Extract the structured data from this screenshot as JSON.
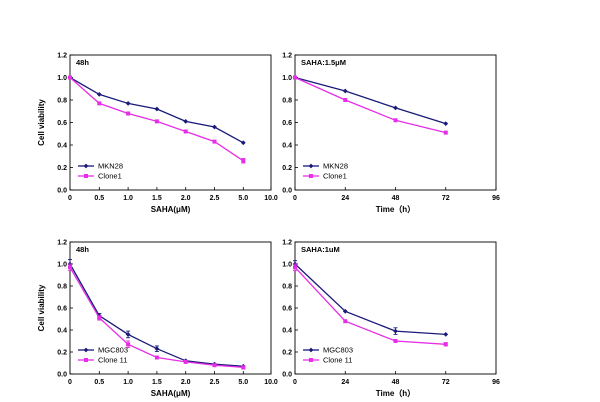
{
  "colors": {
    "series_a": "#1a1a7a",
    "series_b": "#e62ee6"
  },
  "chart_data": [
    {
      "type": "line",
      "title": "48h",
      "xlabel": "SAHA(μM)",
      "ylabel": "Cell viability",
      "categories": [
        "0",
        "0.5",
        "1.0",
        "1.5",
        "2.0",
        "2.5",
        "5.0"
      ],
      "x_tick_labels": [
        "0",
        "0.5",
        "1.0",
        "1.5",
        "2.0",
        "2.5",
        "5.0",
        "10.0"
      ],
      "ylim": [
        0,
        1.2
      ],
      "y_tick_labels": [
        "0.0",
        "0.2",
        "0.4",
        "0.6",
        "0.8",
        "1.0",
        "1.2"
      ],
      "legend_position": "bottom-left",
      "series": [
        {
          "name": "MKN28",
          "color": "#1a1a7a",
          "marker": "diamond",
          "values": [
            1.0,
            0.85,
            0.77,
            0.72,
            0.61,
            0.56,
            0.42
          ],
          "errors": [
            0,
            0,
            0,
            0,
            0,
            0,
            0
          ]
        },
        {
          "name": "Clone1",
          "color": "#e62ee6",
          "marker": "square",
          "values": [
            1.0,
            0.77,
            0.68,
            0.61,
            0.52,
            0.43,
            0.26
          ],
          "errors": [
            0,
            0,
            0,
            0,
            0,
            0,
            0.02
          ]
        }
      ]
    },
    {
      "type": "line",
      "title": "SAHA:1.5μM",
      "xlabel": "Time（h）",
      "ylabel": "",
      "x_ticks": [
        0,
        24,
        48,
        72,
        96
      ],
      "x_tick_labels": [
        "0",
        "24",
        "48",
        "72",
        "96"
      ],
      "xlim": [
        0,
        96
      ],
      "ylim": [
        0,
        1.2
      ],
      "y_tick_labels": [
        "0.0",
        "0.2",
        "0.4",
        "0.6",
        "0.8",
        "1.0",
        "1.2"
      ],
      "legend_position": "bottom-left",
      "series": [
        {
          "name": "MKN28",
          "color": "#1a1a7a",
          "marker": "diamond",
          "x": [
            0,
            24,
            48,
            72
          ],
          "values": [
            1.0,
            0.88,
            0.73,
            0.59
          ],
          "errors": [
            0,
            0,
            0,
            0
          ]
        },
        {
          "name": "Clone1",
          "color": "#e62ee6",
          "marker": "square",
          "x": [
            0,
            24,
            48,
            72
          ],
          "values": [
            1.0,
            0.8,
            0.62,
            0.51
          ],
          "errors": [
            0,
            0,
            0,
            0
          ]
        }
      ]
    },
    {
      "type": "line",
      "title": "48h",
      "xlabel": "SAHA(μM)",
      "ylabel": "Cell viability",
      "categories": [
        "0",
        "0.5",
        "1.0",
        "1.5",
        "2.0",
        "2.5",
        "5.0"
      ],
      "x_tick_labels": [
        "0",
        "0.5",
        "1.0",
        "1.5",
        "2.0",
        "2.5",
        "5.0",
        "10.0"
      ],
      "ylim": [
        0,
        1.2
      ],
      "y_tick_labels": [
        "0.0",
        "0.2",
        "0.4",
        "0.6",
        "0.8",
        "1.0",
        "1.2"
      ],
      "legend_position": "bottom-left",
      "series": [
        {
          "name": "MGC803",
          "color": "#1a1a7a",
          "marker": "diamond",
          "values": [
            1.0,
            0.53,
            0.36,
            0.23,
            0.12,
            0.09,
            0.07
          ],
          "errors": [
            0.04,
            0.02,
            0.03,
            0.025,
            0,
            0,
            0
          ]
        },
        {
          "name": "Clone 11",
          "color": "#e62ee6",
          "marker": "square",
          "values": [
            0.97,
            0.51,
            0.27,
            0.15,
            0.11,
            0.08,
            0.06
          ],
          "errors": [
            0.03,
            0.02,
            0.03,
            0,
            0,
            0,
            0.015
          ]
        }
      ]
    },
    {
      "type": "line",
      "title": "SAHA:1uM",
      "xlabel": "Time（h）",
      "ylabel": "",
      "x_ticks": [
        0,
        24,
        48,
        72,
        96
      ],
      "x_tick_labels": [
        "0",
        "24",
        "48",
        "72",
        "96"
      ],
      "xlim": [
        0,
        96
      ],
      "ylim": [
        0,
        1.2
      ],
      "y_tick_labels": [
        "0.0",
        "0.2",
        "0.4",
        "0.6",
        "0.8",
        "1.0",
        "1.2"
      ],
      "legend_position": "bottom-left",
      "series": [
        {
          "name": "MGC803",
          "color": "#1a1a7a",
          "marker": "diamond",
          "x": [
            0,
            24,
            48,
            72
          ],
          "values": [
            1.0,
            0.57,
            0.39,
            0.36
          ],
          "errors": [
            0.03,
            0,
            0.03,
            0
          ]
        },
        {
          "name": "Clone 11",
          "color": "#e62ee6",
          "marker": "square",
          "x": [
            0,
            24,
            48,
            72
          ],
          "values": [
            0.97,
            0.48,
            0.3,
            0.27
          ],
          "errors": [
            0.03,
            0,
            0,
            0.015
          ]
        }
      ]
    }
  ]
}
